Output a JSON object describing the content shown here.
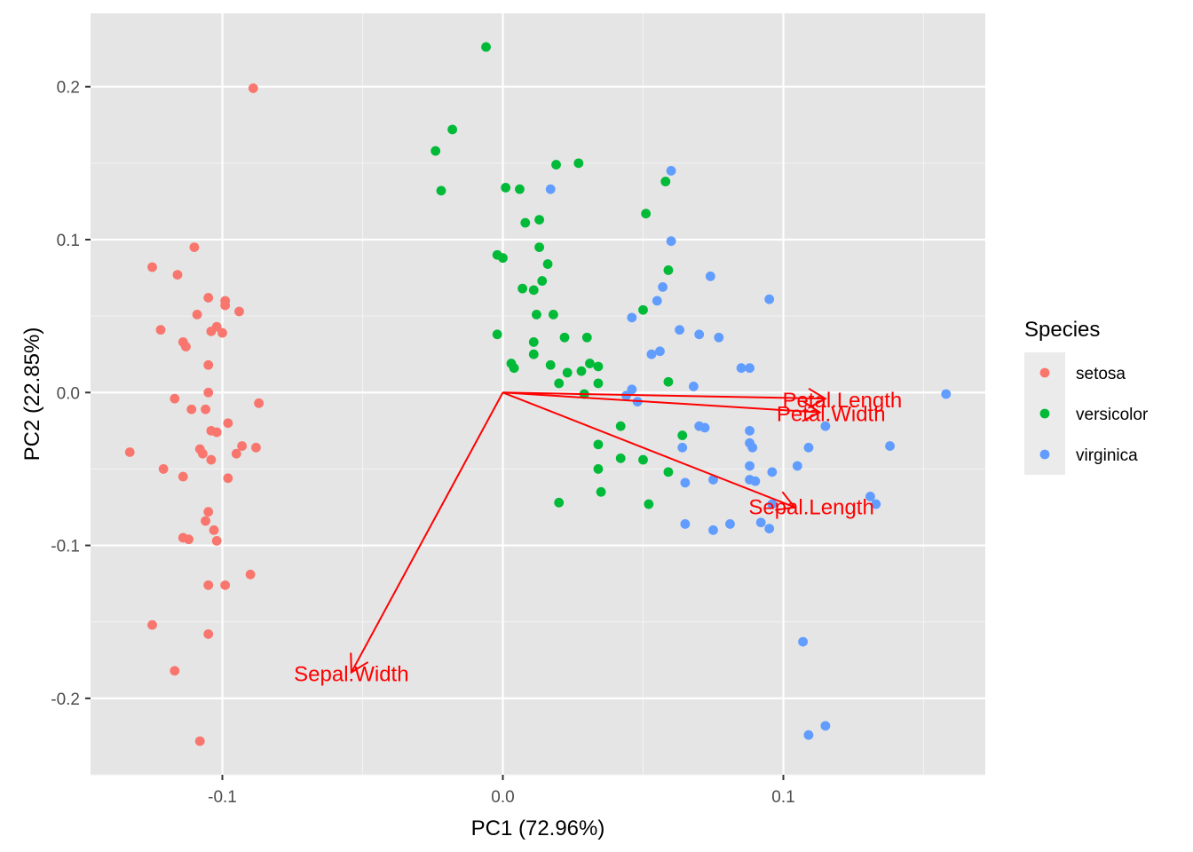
{
  "chart_data": {
    "type": "scatter",
    "title": "",
    "xlabel": "PC1 (72.96%)",
    "ylabel": "PC2 (22.85%)",
    "xlim": [
      -0.147,
      0.172
    ],
    "ylim": [
      -0.25,
      0.248
    ],
    "x_ticks": [
      -0.1,
      0.0,
      0.1
    ],
    "x_tick_labels": [
      "-0.1",
      "0.0",
      "0.1"
    ],
    "y_ticks": [
      -0.2,
      -0.1,
      0.0,
      0.1,
      0.2
    ],
    "y_tick_labels": [
      "-0.2",
      "-0.1",
      "0.0",
      "0.1",
      "0.2"
    ],
    "grid": true,
    "legend": {
      "title": "Species",
      "placement": "right"
    },
    "series": [
      {
        "name": "setosa",
        "color": "#F8766D",
        "points": [
          [
            -0.089,
            0.199
          ],
          [
            -0.11,
            0.095
          ],
          [
            -0.125,
            0.082
          ],
          [
            -0.116,
            0.077
          ],
          [
            -0.105,
            0.062
          ],
          [
            -0.099,
            0.06
          ],
          [
            -0.099,
            0.057
          ],
          [
            -0.094,
            0.053
          ],
          [
            -0.109,
            0.051
          ],
          [
            -0.122,
            0.041
          ],
          [
            -0.102,
            0.043
          ],
          [
            -0.104,
            0.04
          ],
          [
            -0.1,
            0.039
          ],
          [
            -0.114,
            0.033
          ],
          [
            -0.113,
            0.03
          ],
          [
            -0.105,
            0.018
          ],
          [
            -0.105,
            0.0
          ],
          [
            -0.117,
            -0.004
          ],
          [
            -0.111,
            -0.011
          ],
          [
            -0.106,
            -0.011
          ],
          [
            -0.098,
            -0.02
          ],
          [
            -0.087,
            -0.007
          ],
          [
            -0.104,
            -0.025
          ],
          [
            -0.102,
            -0.026
          ],
          [
            -0.108,
            -0.037
          ],
          [
            -0.107,
            -0.04
          ],
          [
            -0.093,
            -0.035
          ],
          [
            -0.088,
            -0.036
          ],
          [
            -0.104,
            -0.044
          ],
          [
            -0.095,
            -0.04
          ],
          [
            -0.133,
            -0.039
          ],
          [
            -0.121,
            -0.05
          ],
          [
            -0.114,
            -0.055
          ],
          [
            -0.098,
            -0.056
          ],
          [
            -0.105,
            -0.078
          ],
          [
            -0.106,
            -0.084
          ],
          [
            -0.103,
            -0.09
          ],
          [
            -0.114,
            -0.095
          ],
          [
            -0.112,
            -0.096
          ],
          [
            -0.102,
            -0.097
          ],
          [
            -0.09,
            -0.119
          ],
          [
            -0.105,
            -0.126
          ],
          [
            -0.099,
            -0.126
          ],
          [
            -0.125,
            -0.152
          ],
          [
            -0.105,
            -0.158
          ],
          [
            -0.117,
            -0.182
          ],
          [
            -0.108,
            -0.228
          ]
        ]
      },
      {
        "name": "versicolor",
        "color": "#00BA38",
        "points": [
          [
            -0.006,
            0.226
          ],
          [
            -0.018,
            0.172
          ],
          [
            -0.024,
            0.158
          ],
          [
            -0.022,
            0.132
          ],
          [
            0.001,
            0.134
          ],
          [
            0.006,
            0.133
          ],
          [
            0.019,
            0.149
          ],
          [
            0.027,
            0.15
          ],
          [
            0.013,
            0.113
          ],
          [
            0.008,
            0.111
          ],
          [
            0.013,
            0.095
          ],
          [
            0.016,
            0.084
          ],
          [
            -0.002,
            0.09
          ],
          [
            0.0,
            0.088
          ],
          [
            0.014,
            0.073
          ],
          [
            0.007,
            0.068
          ],
          [
            0.011,
            0.067
          ],
          [
            0.012,
            0.051
          ],
          [
            0.018,
            0.051
          ],
          [
            -0.002,
            0.038
          ],
          [
            0.011,
            0.033
          ],
          [
            0.022,
            0.036
          ],
          [
            0.03,
            0.036
          ],
          [
            0.011,
            0.025
          ],
          [
            0.003,
            0.019
          ],
          [
            0.004,
            0.016
          ],
          [
            0.017,
            0.018
          ],
          [
            0.023,
            0.013
          ],
          [
            0.031,
            0.019
          ],
          [
            0.034,
            0.017
          ],
          [
            0.028,
            0.014
          ],
          [
            0.02,
            0.006
          ],
          [
            0.034,
            0.006
          ],
          [
            0.029,
            -0.001
          ],
          [
            0.051,
            0.117
          ],
          [
            0.058,
            0.138
          ],
          [
            0.059,
            0.08
          ],
          [
            0.05,
            0.054
          ],
          [
            0.059,
            0.007
          ],
          [
            0.064,
            -0.028
          ],
          [
            0.042,
            -0.022
          ],
          [
            0.034,
            -0.034
          ],
          [
            0.042,
            -0.043
          ],
          [
            0.05,
            -0.044
          ],
          [
            0.034,
            -0.05
          ],
          [
            0.059,
            -0.052
          ],
          [
            0.035,
            -0.065
          ],
          [
            0.02,
            -0.072
          ],
          [
            0.052,
            -0.073
          ]
        ]
      },
      {
        "name": "virginica",
        "color": "#619CFF",
        "points": [
          [
            0.017,
            0.133
          ],
          [
            0.06,
            0.145
          ],
          [
            0.06,
            0.099
          ],
          [
            0.074,
            0.076
          ],
          [
            0.057,
            0.069
          ],
          [
            0.055,
            0.06
          ],
          [
            0.095,
            0.061
          ],
          [
            0.046,
            0.049
          ],
          [
            0.063,
            0.041
          ],
          [
            0.07,
            0.038
          ],
          [
            0.077,
            0.036
          ],
          [
            0.056,
            0.027
          ],
          [
            0.053,
            0.025
          ],
          [
            0.085,
            0.016
          ],
          [
            0.088,
            0.016
          ],
          [
            0.046,
            0.002
          ],
          [
            0.044,
            -0.002
          ],
          [
            0.048,
            -0.006
          ],
          [
            0.068,
            0.004
          ],
          [
            0.07,
            -0.022
          ],
          [
            0.072,
            -0.023
          ],
          [
            0.088,
            -0.025
          ],
          [
            0.115,
            -0.022
          ],
          [
            0.158,
            -0.001
          ],
          [
            0.064,
            -0.036
          ],
          [
            0.088,
            -0.033
          ],
          [
            0.089,
            -0.036
          ],
          [
            0.109,
            -0.036
          ],
          [
            0.138,
            -0.035
          ],
          [
            0.088,
            -0.048
          ],
          [
            0.096,
            -0.052
          ],
          [
            0.105,
            -0.048
          ],
          [
            0.065,
            -0.059
          ],
          [
            0.075,
            -0.057
          ],
          [
            0.088,
            -0.057
          ],
          [
            0.09,
            -0.058
          ],
          [
            0.131,
            -0.068
          ],
          [
            0.133,
            -0.073
          ],
          [
            0.096,
            -0.073
          ],
          [
            0.065,
            -0.086
          ],
          [
            0.075,
            -0.09
          ],
          [
            0.081,
            -0.086
          ],
          [
            0.092,
            -0.085
          ],
          [
            0.095,
            -0.089
          ],
          [
            0.107,
            -0.163
          ],
          [
            0.115,
            -0.218
          ],
          [
            0.109,
            -0.224
          ]
        ]
      }
    ],
    "loadings": [
      {
        "name": "Petal.Length",
        "x": 0.115,
        "y": -0.004,
        "label_x": 0.121,
        "label_y": -0.005
      },
      {
        "name": "Petal.Width",
        "x": 0.113,
        "y": -0.013,
        "label_x": 0.117,
        "label_y": -0.014
      },
      {
        "name": "Sepal.Length",
        "x": 0.104,
        "y": -0.075,
        "label_x": 0.11,
        "label_y": -0.075
      },
      {
        "name": "Sepal.Width",
        "x": -0.054,
        "y": -0.183,
        "label_x": -0.054,
        "label_y": -0.184
      }
    ],
    "loading_color": "#FF0000"
  },
  "colors": {
    "panel": "#E5E5E5",
    "grid_major": "#FFFFFF",
    "grid_minor": "#F2F2F2",
    "legend_key_bg": "#EBEBEB"
  }
}
